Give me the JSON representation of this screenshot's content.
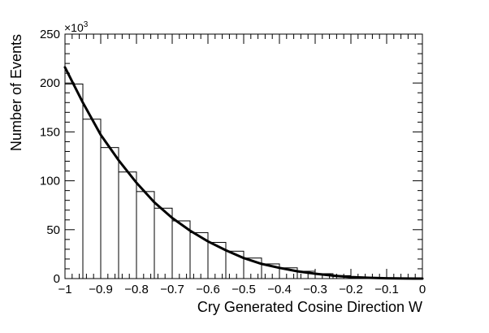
{
  "chart_data": {
    "type": "bar",
    "xlabel": "Cry Generated Cosine Direction W",
    "ylabel": "Number of Events",
    "y_multiplier_label": "×10",
    "y_multiplier_exp": "3",
    "xlim": [
      -1,
      0
    ],
    "ylim": [
      0,
      250
    ],
    "x_ticks": [
      {
        "value": -1,
        "label": "−1"
      },
      {
        "value": -0.9,
        "label": "−0.9"
      },
      {
        "value": -0.8,
        "label": "−0.8"
      },
      {
        "value": -0.7,
        "label": "−0.7"
      },
      {
        "value": -0.6,
        "label": "−0.6"
      },
      {
        "value": -0.5,
        "label": "−0.5"
      },
      {
        "value": -0.4,
        "label": "−0.4"
      },
      {
        "value": -0.3,
        "label": "−0.3"
      },
      {
        "value": -0.2,
        "label": "−0.2"
      },
      {
        "value": -0.1,
        "label": "−0.1"
      },
      {
        "value": 0,
        "label": "0"
      }
    ],
    "y_ticks": [
      {
        "value": 0,
        "label": "0"
      },
      {
        "value": 50,
        "label": "50"
      },
      {
        "value": 100,
        "label": "100"
      },
      {
        "value": 150,
        "label": "150"
      },
      {
        "value": 200,
        "label": "200"
      },
      {
        "value": 250,
        "label": "250"
      }
    ],
    "bin_edges": [
      -1.0,
      -0.95,
      -0.9,
      -0.85,
      -0.8,
      -0.75,
      -0.7,
      -0.65,
      -0.6,
      -0.55,
      -0.5,
      -0.45,
      -0.4,
      -0.35,
      -0.3,
      -0.25,
      -0.2,
      -0.15,
      -0.1,
      -0.05,
      0.0
    ],
    "histogram": [
      199,
      163,
      134,
      109,
      89,
      72,
      59,
      47,
      37,
      28,
      21,
      15,
      11,
      7.5,
      5,
      3,
      1.6,
      0.8,
      0.3,
      0.1
    ],
    "fit_curve": {
      "x": [
        -1.0,
        -0.95,
        -0.9,
        -0.85,
        -0.8,
        -0.75,
        -0.7,
        -0.65,
        -0.6,
        -0.55,
        -0.5,
        -0.45,
        -0.4,
        -0.35,
        -0.3,
        -0.25,
        -0.2,
        -0.15,
        -0.1,
        -0.05,
        0.0
      ],
      "y": [
        216,
        180,
        147,
        121,
        98,
        78,
        62,
        49,
        38,
        29,
        21,
        15,
        11,
        7.5,
        5,
        3,
        1.6,
        0.8,
        0.3,
        0.1,
        0
      ]
    },
    "grid": false
  },
  "colors": {
    "axis": "#000000",
    "histogram": "#000000",
    "fit": "#000000"
  }
}
